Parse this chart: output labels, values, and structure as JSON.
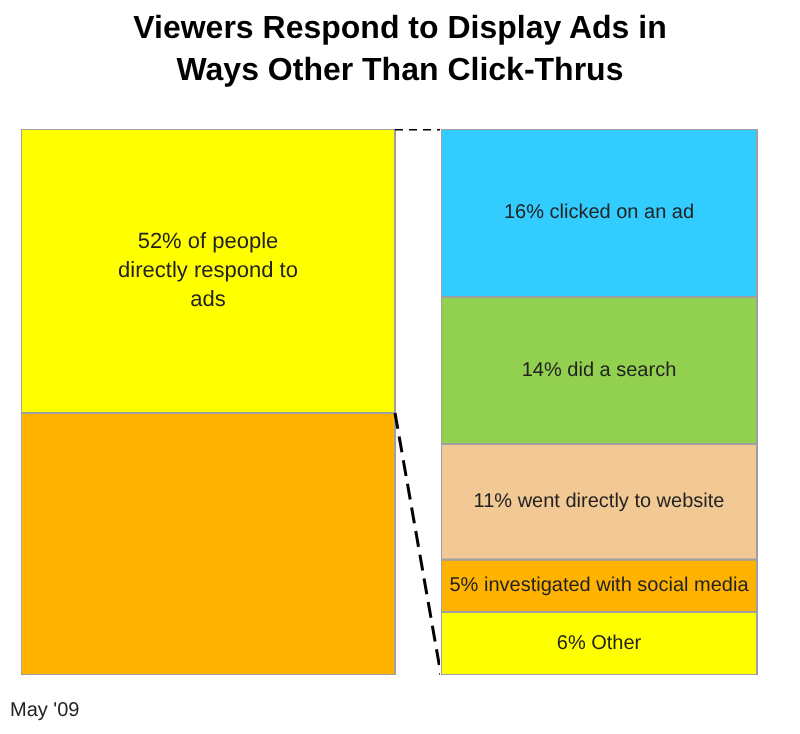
{
  "chart_data": [
    {
      "type": "bar",
      "stacked": true,
      "title": "Viewers Respond to Display Ads in Ways Other Than Click-Thrus",
      "categories": [
        null
      ],
      "series": [
        {
          "color": "#ffb300",
          "values": [
            48
          ]
        },
        {
          "color": "#ffff00",
          "values": [
            52
          ],
          "value_labels": [
            "52% of people directly respond to ads"
          ]
        }
      ],
      "annotations": [
        "May '09"
      ]
    },
    {
      "type": "bar",
      "stacked": true,
      "categories": [
        null
      ],
      "series": [
        {
          "color": "#ffff00",
          "values": [
            6
          ],
          "value_labels": [
            "6% Other"
          ]
        },
        {
          "color": "#ffb300",
          "values": [
            5
          ],
          "value_labels": [
            "5% investigated with social media"
          ]
        },
        {
          "color": "#f2c994",
          "values": [
            11
          ],
          "value_labels": [
            "11% went directly to website"
          ]
        },
        {
          "color": "#92d050",
          "values": [
            14
          ],
          "value_labels": [
            "14% did a search"
          ]
        },
        {
          "color": "#33ccff",
          "values": [
            16
          ],
          "value_labels": [
            "16% clicked on an ad"
          ]
        }
      ]
    }
  ]
}
